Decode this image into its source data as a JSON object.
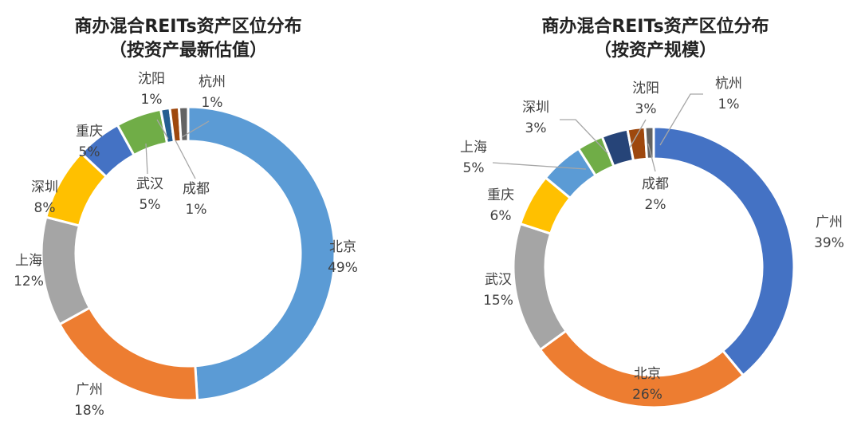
{
  "chart_data": [
    {
      "type": "pie",
      "variant": "donut",
      "title": "商办混合REITs资产区位分布",
      "subtitle": "（按资产最新估值）",
      "categories": [
        "北京",
        "广州",
        "上海",
        "深圳",
        "重庆",
        "武汉",
        "沈阳",
        "成都",
        "杭州"
      ],
      "values": [
        49,
        18,
        12,
        8,
        5,
        5,
        1,
        1,
        1
      ],
      "value_labels": [
        "49%",
        "18%",
        "12%",
        "8%",
        "5%",
        "5%",
        "1%",
        "1%",
        "1%"
      ],
      "colors": [
        "#5B9BD5",
        "#ED7D31",
        "#A5A5A5",
        "#FFC000",
        "#4472C4",
        "#70AD47",
        "#255E91",
        "#9E480E",
        "#636363"
      ],
      "legend": "none"
    },
    {
      "type": "pie",
      "variant": "donut",
      "title": "商办混合REITs资产区位分布",
      "subtitle": "（按资产规模）",
      "categories": [
        "广州",
        "北京",
        "武汉",
        "重庆",
        "上海",
        "深圳",
        "沈阳",
        "成都",
        "杭州"
      ],
      "values": [
        39,
        26,
        15,
        6,
        5,
        3,
        3,
        2,
        1
      ],
      "value_labels": [
        "39%",
        "26%",
        "15%",
        "6%",
        "5%",
        "3%",
        "3%",
        "2%",
        "1%"
      ],
      "colors": [
        "#4472C4",
        "#ED7D31",
        "#A5A5A5",
        "#FFC000",
        "#5B9BD5",
        "#70AD47",
        "#264478",
        "#9E480E",
        "#636363"
      ],
      "legend": "none"
    }
  ]
}
